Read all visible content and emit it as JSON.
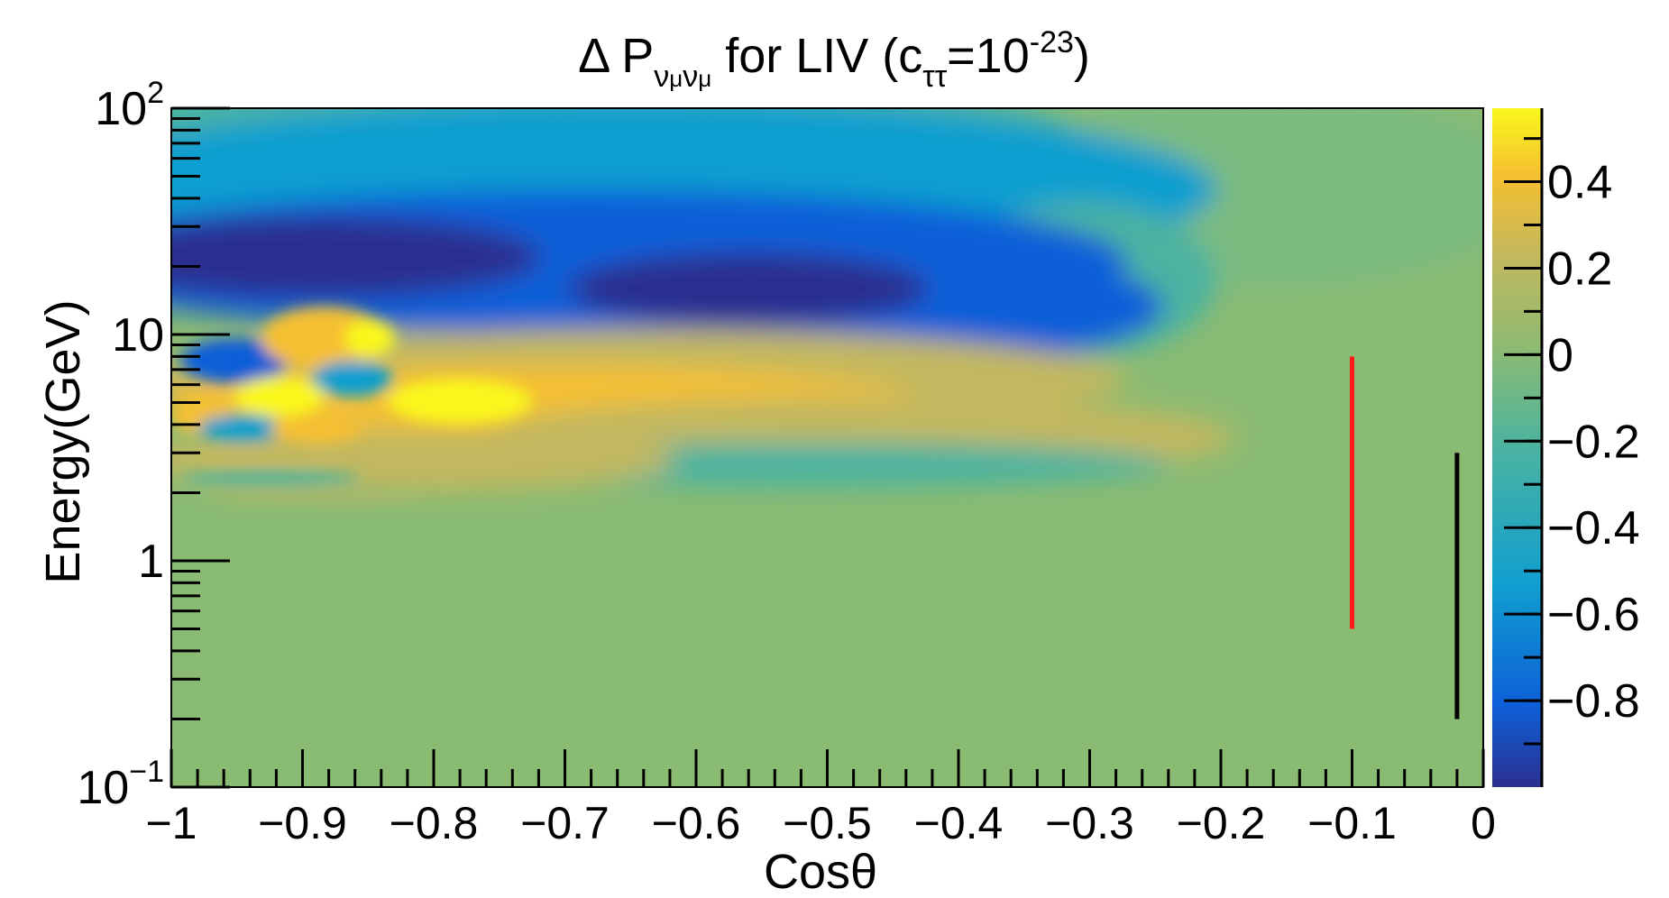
{
  "chart_data": {
    "type": "heatmap",
    "title": {
      "main": "Δ P",
      "sub": "ν",
      "sub_small": "μ",
      "rest": " for LIV (c",
      "rest_sub": "ττ",
      "eq": "=10",
      "exp": "-23",
      "close": ")"
    },
    "xlabel": "Cosθ",
    "ylabel": "Energy(GeV)",
    "xlim": [
      -1,
      0
    ],
    "ylim": [
      0.1,
      100
    ],
    "yscale": "log",
    "x_ticks": [
      {
        "value": -1,
        "label": "−1"
      },
      {
        "value": -0.9,
        "label": "−0.9"
      },
      {
        "value": -0.8,
        "label": "−0.8"
      },
      {
        "value": -0.7,
        "label": "−0.7"
      },
      {
        "value": -0.6,
        "label": "−0.6"
      },
      {
        "value": -0.5,
        "label": "−0.5"
      },
      {
        "value": -0.4,
        "label": "−0.4"
      },
      {
        "value": -0.3,
        "label": "−0.3"
      },
      {
        "value": -0.2,
        "label": "−0.2"
      },
      {
        "value": -0.1,
        "label": "−0.1"
      },
      {
        "value": 0,
        "label": "0"
      }
    ],
    "y_ticks": [
      {
        "value": 100,
        "base": "10",
        "exp": "2"
      },
      {
        "value": 10,
        "base": "10",
        "exp": ""
      },
      {
        "value": 1,
        "base": "1",
        "exp": ""
      },
      {
        "value": 0.1,
        "base": "10",
        "exp": "−1"
      }
    ],
    "colorbar": {
      "range": [
        -1.0,
        0.57
      ],
      "ticks": [
        {
          "value": 0.4,
          "label": "0.4"
        },
        {
          "value": 0.2,
          "label": "0.2"
        },
        {
          "value": 0,
          "label": "0"
        },
        {
          "value": -0.2,
          "label": "−0.2"
        },
        {
          "value": -0.4,
          "label": "−0.4"
        },
        {
          "value": -0.6,
          "label": "−0.6"
        },
        {
          "value": -0.8,
          "label": "−0.8"
        }
      ]
    },
    "colors": [
      "#2b2f8e",
      "#0d5fd8",
      "#109fcf",
      "#4bb3a0",
      "#8abb73",
      "#c2b85e",
      "#f5c030",
      "#f9f71c"
    ],
    "markers": [
      {
        "name": "red-line",
        "x": -0.1,
        "y_from": 0.5,
        "y_to": 8,
        "color": "#ff1a1a"
      },
      {
        "name": "black-line",
        "x": -0.02,
        "y_from": 0.2,
        "y_to": 3,
        "color": "#000000"
      }
    ],
    "features": [
      {
        "desc": "blue trough",
        "x_from": -1,
        "x_to": -0.2,
        "energy": "15-30 GeV",
        "value": -0.95
      },
      {
        "desc": "yellow ridge",
        "x_from": -1,
        "x_to": -0.3,
        "energy": "4-10 GeV",
        "value": 0.55
      }
    ]
  }
}
